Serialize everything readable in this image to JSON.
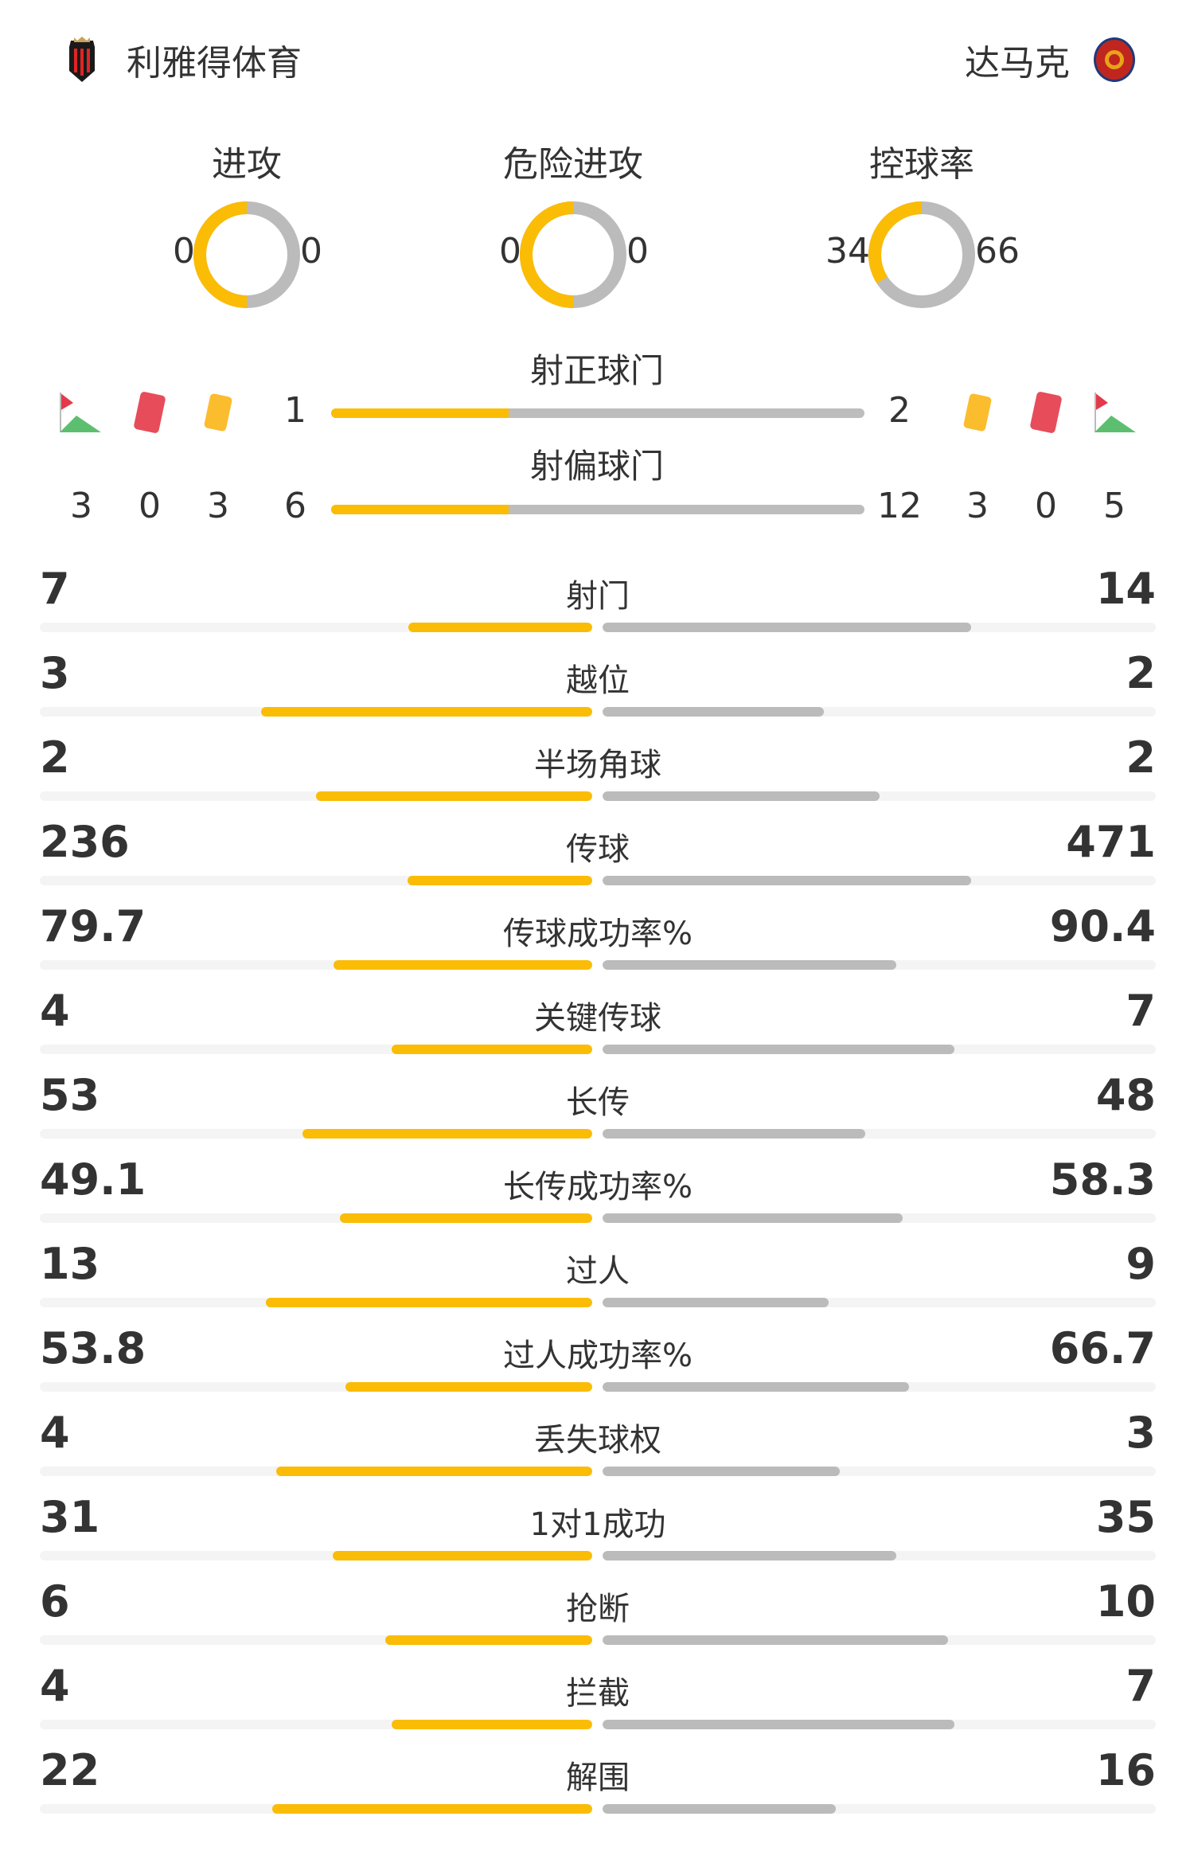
{
  "header": {
    "home_team": "利雅得体育",
    "away_team": "达马克",
    "home_logo_icon": "al-riyadh-crest",
    "away_logo_icon": "damac-club-crest"
  },
  "colors": {
    "home": "#fbbc05",
    "away": "#bbbbbb",
    "track": "#f4f4f4"
  },
  "donuts": [
    {
      "label": "进攻",
      "home": "0",
      "away": "0",
      "home_share": 0.5
    },
    {
      "label": "危险进攻",
      "home": "0",
      "away": "0",
      "home_share": 0.5
    },
    {
      "label": "控球率",
      "home": "34",
      "away": "66",
      "home_share": 0.34
    }
  ],
  "shots": {
    "on_target": {
      "label": "射正球门",
      "home": "1",
      "away": "2"
    },
    "off_target": {
      "label": "射偏球门",
      "home": "6",
      "away": "12"
    }
  },
  "events": {
    "home": {
      "corners": "3",
      "red_cards": "0",
      "yellow_cards": "3"
    },
    "away": {
      "corners": "5",
      "red_cards": "0",
      "yellow_cards": "3"
    }
  },
  "stats": [
    {
      "label": "射门",
      "home": "7",
      "away": "14"
    },
    {
      "label": "越位",
      "home": "3",
      "away": "2"
    },
    {
      "label": "半场角球",
      "home": "2",
      "away": "2"
    },
    {
      "label": "传球",
      "home": "236",
      "away": "471"
    },
    {
      "label": "传球成功率%",
      "home": "79.7",
      "away": "90.4"
    },
    {
      "label": "关键传球",
      "home": "4",
      "away": "7"
    },
    {
      "label": "长传",
      "home": "53",
      "away": "48"
    },
    {
      "label": "长传成功率%",
      "home": "49.1",
      "away": "58.3"
    },
    {
      "label": "过人",
      "home": "13",
      "away": "9"
    },
    {
      "label": "过人成功率%",
      "home": "53.8",
      "away": "66.7"
    },
    {
      "label": "丢失球权",
      "home": "4",
      "away": "3"
    },
    {
      "label": "1对1成功",
      "home": "31",
      "away": "35"
    },
    {
      "label": "抢断",
      "home": "6",
      "away": "10"
    },
    {
      "label": "拦截",
      "home": "4",
      "away": "7"
    },
    {
      "label": "解围",
      "home": "22",
      "away": "16"
    }
  ]
}
